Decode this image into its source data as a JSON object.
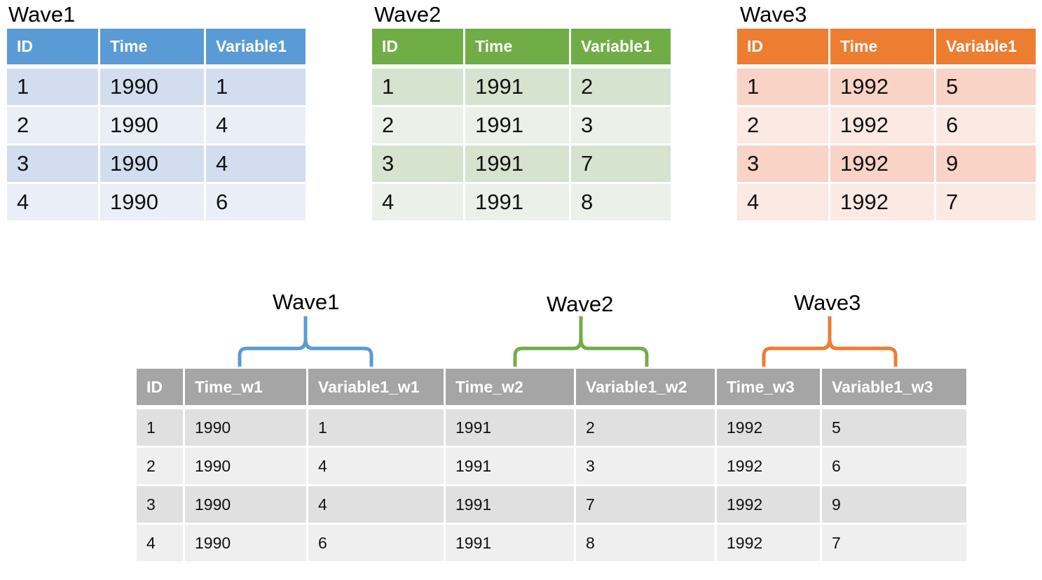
{
  "colors": {
    "wave1": {
      "header": "#5b9bd5",
      "odd": "#d2deef",
      "even": "#eaeff7"
    },
    "wave2": {
      "header": "#70ad47",
      "odd": "#d5e3cf",
      "even": "#ebf1e9"
    },
    "wave3": {
      "header": "#ed7d31",
      "odd": "#f8d3c6",
      "even": "#fbe9e3"
    },
    "merged_header": "#a5a5a5"
  },
  "wave_tables": [
    {
      "title": "Wave1",
      "columns": [
        "ID",
        "Time",
        "Variable1"
      ],
      "rows": [
        [
          "1",
          "1990",
          "1"
        ],
        [
          "2",
          "1990",
          "4"
        ],
        [
          "3",
          "1990",
          "4"
        ],
        [
          "4",
          "1990",
          "6"
        ]
      ]
    },
    {
      "title": "Wave2",
      "columns": [
        "ID",
        "Time",
        "Variable1"
      ],
      "rows": [
        [
          "1",
          "1991",
          "2"
        ],
        [
          "2",
          "1991",
          "3"
        ],
        [
          "3",
          "1991",
          "7"
        ],
        [
          "4",
          "1991",
          "8"
        ]
      ]
    },
    {
      "title": "Wave3",
      "columns": [
        "ID",
        "Time",
        "Variable1"
      ],
      "rows": [
        [
          "1",
          "1992",
          "5"
        ],
        [
          "2",
          "1992",
          "6"
        ],
        [
          "3",
          "1992",
          "9"
        ],
        [
          "4",
          "1992",
          "7"
        ]
      ]
    }
  ],
  "brackets": [
    {
      "label": "Wave1",
      "color": "#5b9bd5"
    },
    {
      "label": "Wave2",
      "color": "#70ad47"
    },
    {
      "label": "Wave3",
      "color": "#ed7d31"
    }
  ],
  "merged_table": {
    "columns": [
      "ID",
      "Time_w1",
      "Variable1_w1",
      "Time_w2",
      "Variable1_w2",
      "Time_w3",
      "Variable1_w3"
    ],
    "rows": [
      [
        "1",
        "1990",
        "1",
        "1991",
        "2",
        "1992",
        "5"
      ],
      [
        "2",
        "1990",
        "4",
        "1991",
        "3",
        "1992",
        "6"
      ],
      [
        "3",
        "1990",
        "4",
        "1991",
        "7",
        "1992",
        "9"
      ],
      [
        "4",
        "1990",
        "6",
        "1991",
        "8",
        "1992",
        "7"
      ]
    ]
  }
}
